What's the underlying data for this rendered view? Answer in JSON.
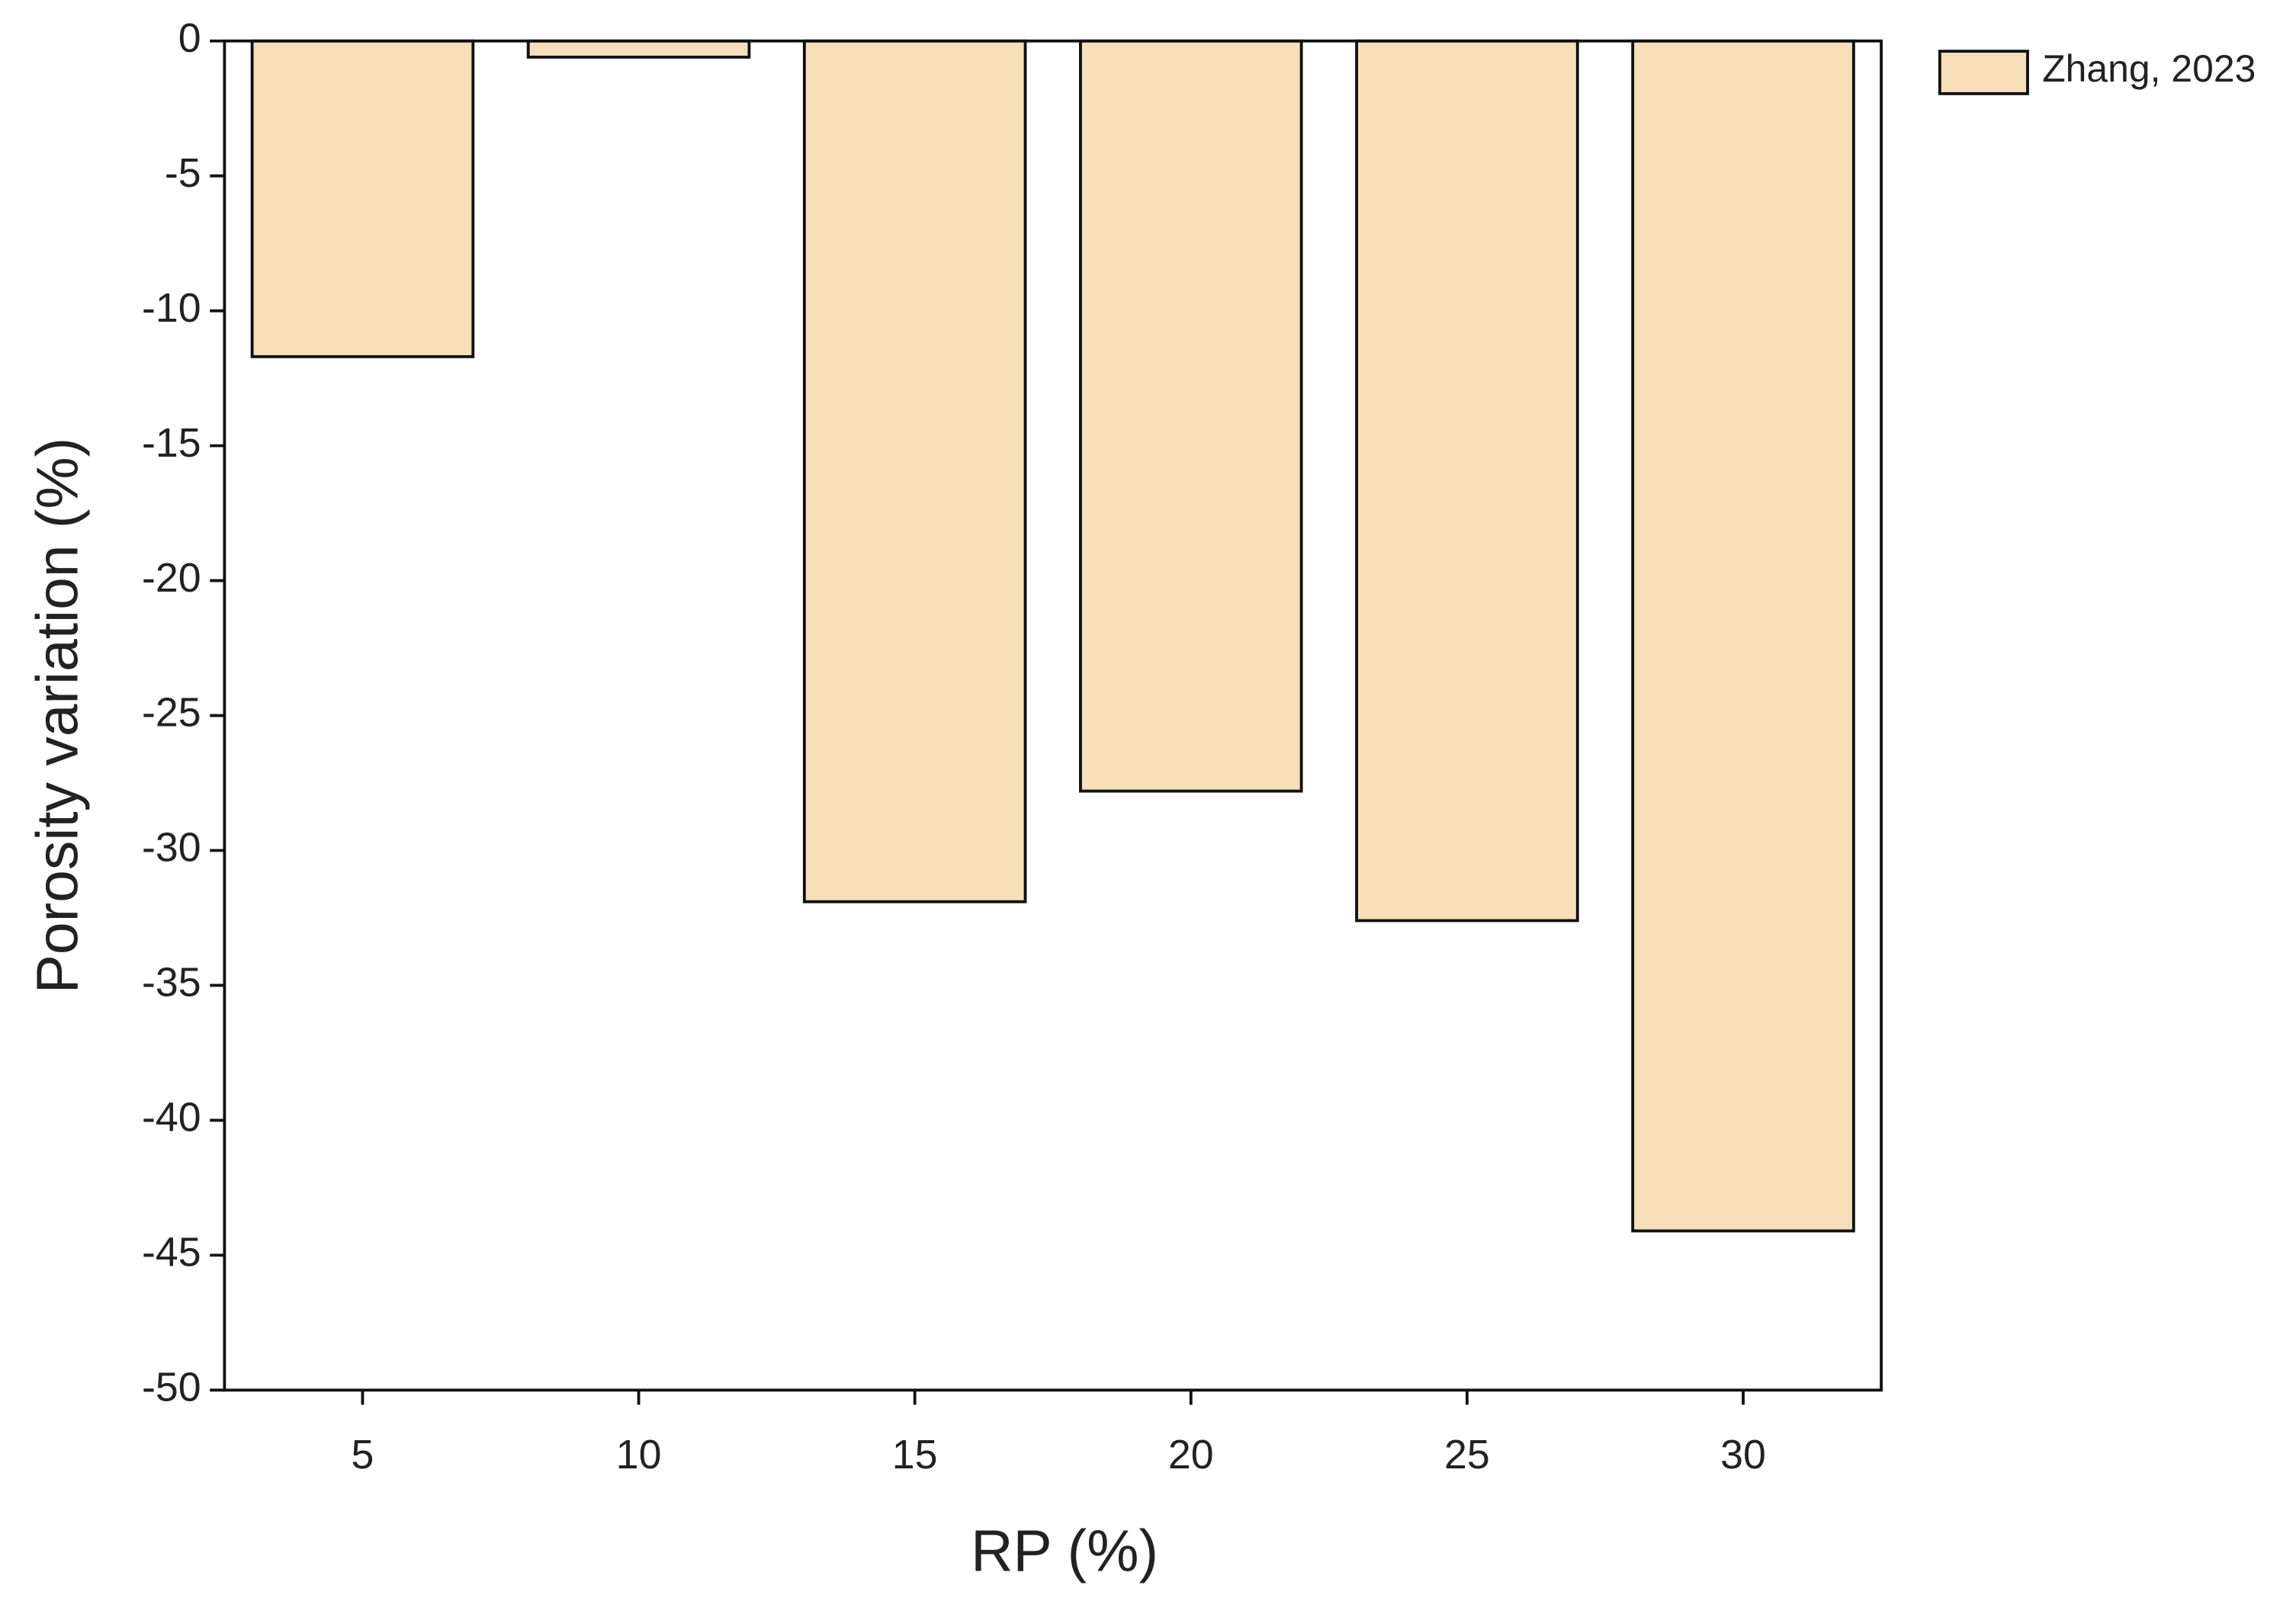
{
  "chart_data": {
    "type": "bar",
    "x_label": "RP (%)",
    "y_label": "Porosity variation (%)",
    "categories": [
      "5",
      "10",
      "15",
      "20",
      "25",
      "30"
    ],
    "series": [
      {
        "name": "Zhang, 2023",
        "color": "#f5deb9",
        "values": [
          -11.7,
          -0.6,
          -31.9,
          -27.8,
          -32.6,
          -44.1
        ]
      }
    ],
    "ylim": [
      -50,
      0
    ],
    "yticks": [
      0,
      -5,
      -10,
      -15,
      -20,
      -25,
      -30,
      -35,
      -40,
      -45,
      -50
    ],
    "legend": "top-right outside"
  }
}
